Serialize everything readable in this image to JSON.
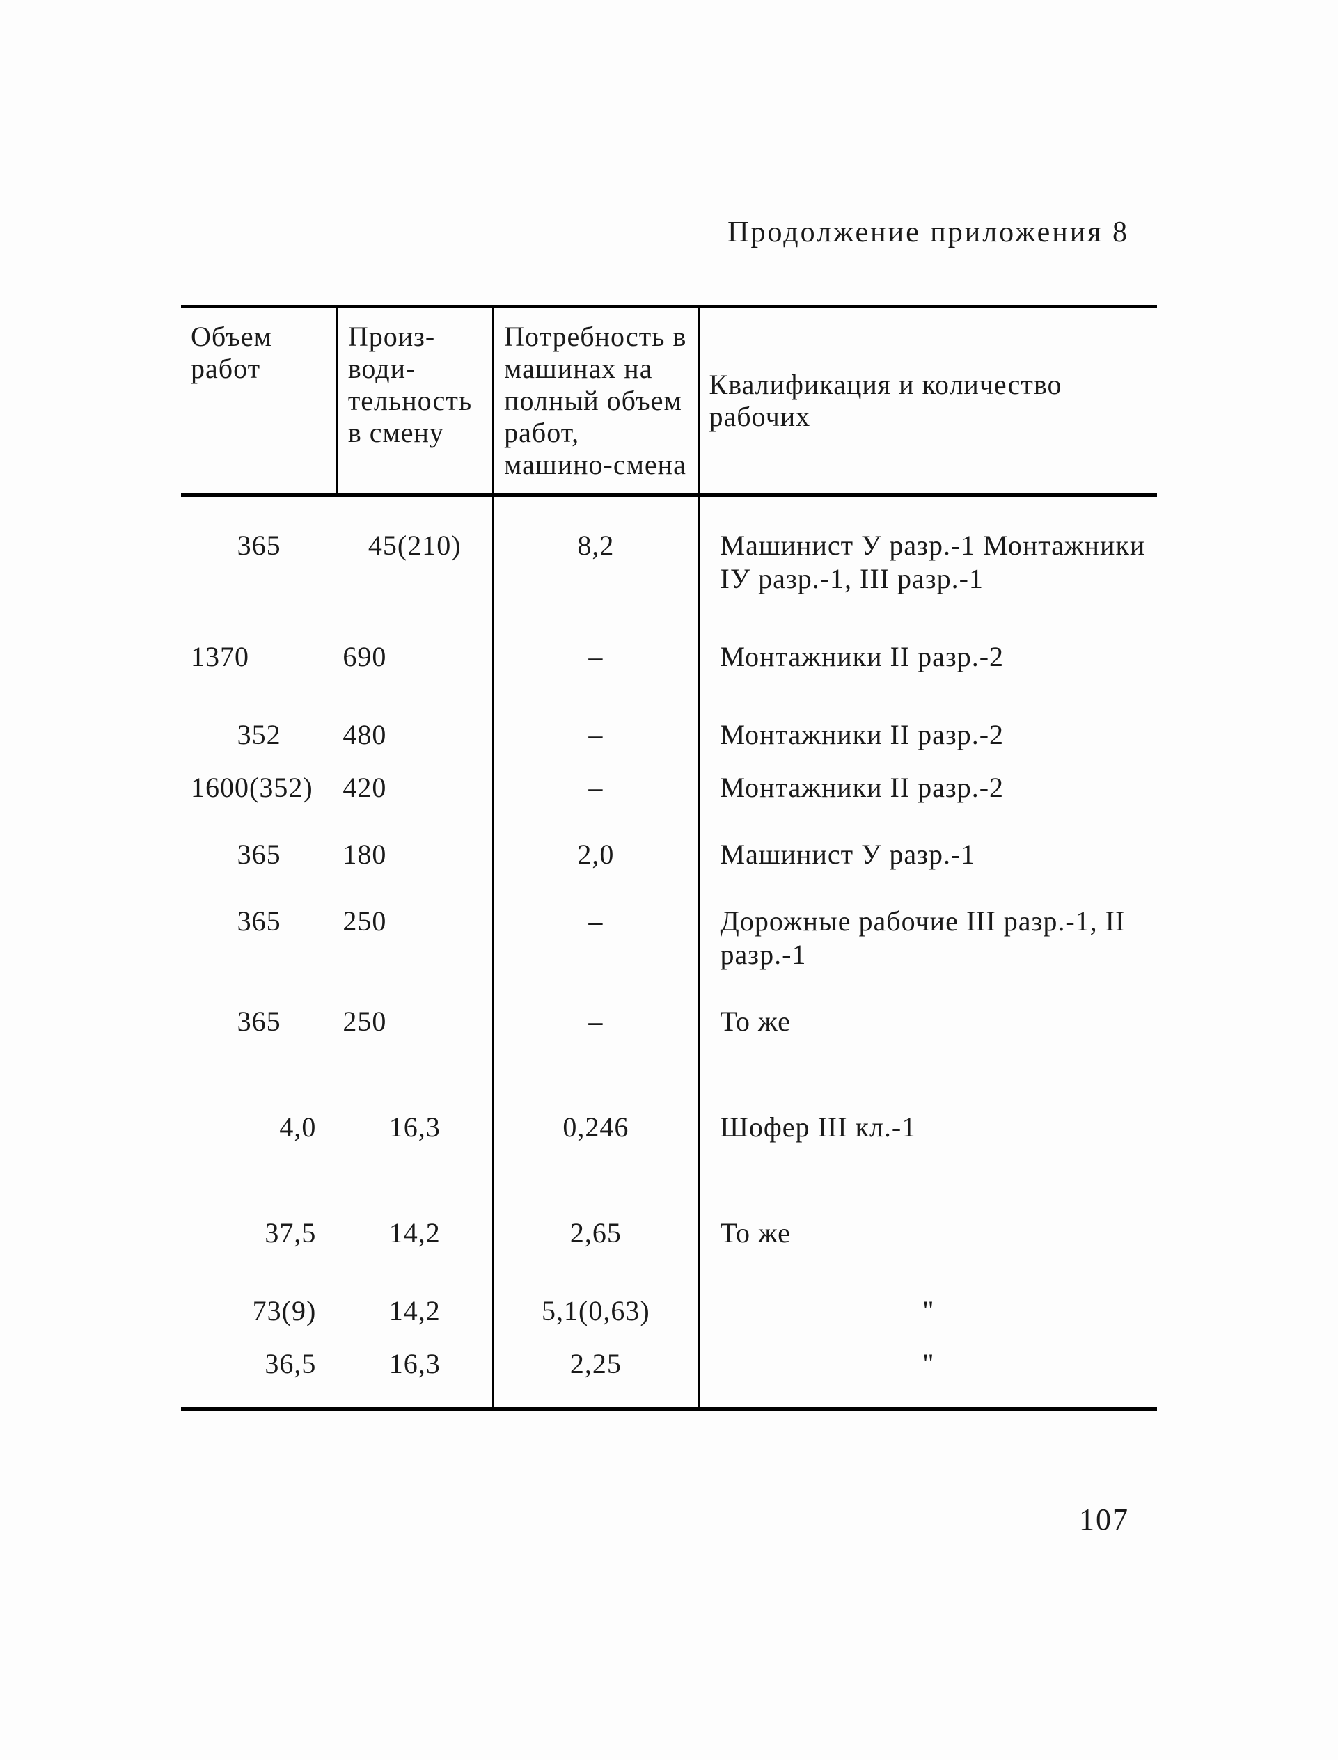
{
  "continuation_label": "Продолжение приложения 8",
  "page_number": "107",
  "table": {
    "columns": [
      "Объем работ",
      "Произ­води­тельность в смену",
      "Потребность в машинах на полный объем работ, машино-смена",
      "Квалификация и ко­личество рабочих"
    ],
    "column_widths_pct": [
      16,
      16,
      21,
      47
    ],
    "border_color": "#000000",
    "text_color": "#1a1a1a",
    "background_color": "#fdfdfd",
    "font_family": "Times New Roman",
    "header_fontsize_pt": 30,
    "body_fontsize_pt": 30,
    "rows": [
      {
        "vol": "365",
        "prod": "45(210)",
        "need": "8,2",
        "qual": "Машинист У разр.-1 Монтажники IУ разр.-1, III разр.-1"
      },
      {
        "vol": "1370",
        "prod": "690",
        "need": "–",
        "qual": "Монтажники II разр.-2"
      },
      {
        "vol": "352",
        "prod": "480",
        "need": "–",
        "qual": "Монтажники II разр.-2"
      },
      {
        "vol": "1600(352)",
        "prod": "420",
        "need": "–",
        "qual": "Монтажники II разр.-2"
      },
      {
        "vol": "365",
        "prod": "180",
        "need": "2,0",
        "qual": "Машинист У разр.-1"
      },
      {
        "vol": "365",
        "prod": "250",
        "need": "–",
        "qual": "Дорожные рабочие III разр.-1, II разр.-1"
      },
      {
        "vol": "365",
        "prod": "250",
        "need": "–",
        "qual": "То же"
      },
      {
        "vol": "4,0",
        "prod": "16,3",
        "need": "0,246",
        "qual": "Шофер III кл.-1"
      },
      {
        "vol": "37,5",
        "prod": "14,2",
        "need": "2,65",
        "qual": "То же"
      },
      {
        "vol": "73(9)",
        "prod": "14,2",
        "need": "5,1(0,63)",
        "qual": "\""
      },
      {
        "vol": "36,5",
        "prod": "16,3",
        "need": "2,25",
        "qual": "\""
      }
    ]
  }
}
